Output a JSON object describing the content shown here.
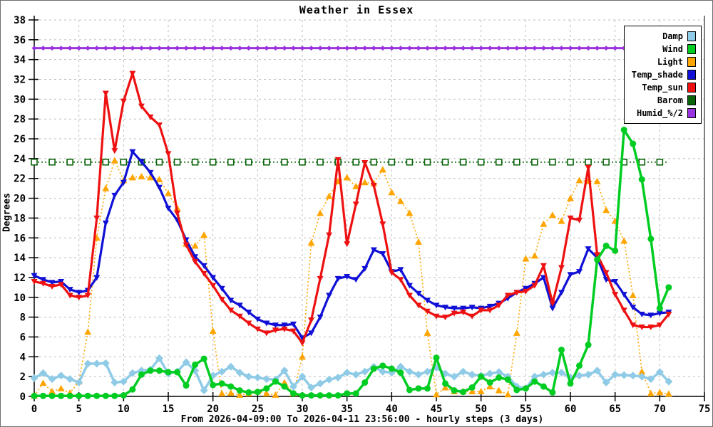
{
  "figure": {
    "title": "Weather in Essex",
    "y_axis_label": "Degrees",
    "x_axis_caption": "From 2026-04-09:00 To 2026-04-11 23:56:00 - hourly steps (3 days)"
  },
  "chart_data": {
    "type": "line",
    "title": "Weather in Essex",
    "ylabel": "Degrees",
    "xlabel": "From 2026-04-09:00 To 2026-04-11 23:56:00 - hourly steps (3 days)",
    "xlim": [
      0,
      75
    ],
    "ylim": [
      0,
      38
    ],
    "x_tick_step": 5,
    "y_tick_step": 2,
    "grid": true,
    "legend_position": "top-right",
    "x_unit": "hour",
    "x_start": 0,
    "x_step": 1,
    "series": [
      {
        "name": "Humid_%/2",
        "color": "#9933e0",
        "style": "solid",
        "width": 3,
        "marker": "diamond-small",
        "marker_every": 1,
        "constant": 35.15,
        "points": 72
      },
      {
        "name": "Barom",
        "color": "#0a640a",
        "style": "dotted",
        "width": 1.6,
        "marker": "square-open",
        "marker_every": 2,
        "constant": 23.65,
        "points": 72
      },
      {
        "name": "Light",
        "color": "#ffa500",
        "style": "dotted",
        "width": 1.6,
        "marker": "triangle-up",
        "marker_every": 1,
        "values": [
          0.05,
          1.35,
          0.5,
          0.8,
          0.35,
          1.5,
          6.5,
          16.0,
          21.0,
          23.8,
          21.8,
          22.1,
          22.2,
          22.1,
          21.9,
          20.5,
          19.0,
          15.4,
          15.2,
          16.3,
          6.6,
          0.3,
          0.35,
          0.15,
          0.3,
          0.5,
          0.3,
          0.15,
          1.4,
          0.3,
          4.0,
          15.5,
          18.5,
          20.2,
          21.7,
          22.1,
          21.2,
          21.6,
          21.5,
          22.9,
          20.6,
          19.7,
          18.5,
          15.6,
          6.4,
          0.2,
          0.9,
          0.5,
          0.5,
          0.5,
          0.5,
          1.0,
          0.6,
          0.2,
          6.4,
          13.9,
          14.2,
          17.4,
          18.3,
          17.7,
          20.0,
          21.8,
          21.7,
          21.7,
          18.8,
          17.7,
          15.7,
          10.2,
          2.5,
          0.3,
          0.4,
          0.25
        ]
      },
      {
        "name": "Damp",
        "color": "#8fcbe6",
        "style": "solid",
        "width": 3.5,
        "marker": "diamond",
        "marker_every": 1,
        "values": [
          1.85,
          2.35,
          1.75,
          2.1,
          1.75,
          1.4,
          3.3,
          3.3,
          3.35,
          1.4,
          1.5,
          2.35,
          2.6,
          2.7,
          3.85,
          2.3,
          2.5,
          3.45,
          2.6,
          0.6,
          2.1,
          2.5,
          3.0,
          2.4,
          2.0,
          1.9,
          1.75,
          1.7,
          2.6,
          1.0,
          2.0,
          0.9,
          1.3,
          1.7,
          1.9,
          2.4,
          2.2,
          2.5,
          3.0,
          2.5,
          2.4,
          3.0,
          2.5,
          2.2,
          2.5,
          2.9,
          2.3,
          2.0,
          2.5,
          2.2,
          2.1,
          2.3,
          2.45,
          2.0,
          1.0,
          0.8,
          2.0,
          2.2,
          2.4,
          2.4,
          1.9,
          2.1,
          2.2,
          2.6,
          1.4,
          2.2,
          2.15,
          2.1,
          2.0,
          1.75,
          2.45,
          1.5
        ]
      },
      {
        "name": "Temp_shade",
        "color": "#1010d6",
        "style": "solid",
        "width": 3.2,
        "marker": "triangle-down",
        "marker_every": 1,
        "values": [
          12.2,
          11.8,
          11.5,
          11.6,
          10.8,
          10.5,
          10.7,
          12.0,
          17.5,
          20.3,
          21.6,
          24.7,
          23.7,
          22.6,
          21.1,
          19.0,
          17.8,
          15.8,
          14.1,
          13.2,
          12.0,
          10.9,
          9.7,
          9.2,
          8.5,
          7.8,
          7.4,
          7.2,
          7.2,
          7.3,
          5.9,
          6.4,
          8.0,
          10.2,
          11.9,
          12.1,
          11.8,
          12.9,
          14.8,
          14.4,
          12.6,
          12.8,
          11.2,
          10.4,
          9.7,
          9.2,
          9.0,
          8.9,
          8.9,
          9.0,
          8.9,
          9.1,
          9.4,
          9.9,
          10.5,
          10.9,
          11.4,
          12.0,
          8.9,
          10.5,
          12.3,
          12.6,
          14.9,
          14.0,
          11.8,
          11.6,
          10.3,
          9.0,
          8.3,
          8.2,
          8.4,
          8.5
        ]
      },
      {
        "name": "Temp_sun",
        "color": "#ee1111",
        "style": "solid",
        "width": 3.2,
        "marker": "triangle-down",
        "marker_every": 1,
        "values": [
          11.6,
          11.4,
          11.1,
          11.3,
          10.2,
          10.0,
          10.2,
          18.0,
          30.6,
          24.8,
          29.8,
          32.6,
          29.3,
          28.2,
          27.4,
          24.5,
          18.5,
          15.3,
          13.6,
          12.4,
          11.2,
          9.8,
          8.7,
          8.1,
          7.4,
          6.8,
          6.4,
          6.7,
          6.8,
          6.6,
          5.4,
          7.7,
          11.9,
          16.3,
          23.9,
          15.4,
          19.4,
          23.6,
          21.3,
          17.4,
          12.5,
          11.8,
          10.2,
          9.2,
          8.6,
          8.1,
          8.0,
          8.4,
          8.5,
          8.1,
          8.7,
          8.7,
          9.2,
          10.2,
          10.5,
          10.6,
          11.2,
          13.2,
          9.4,
          13.0,
          18.0,
          17.8,
          23.1,
          14.3,
          12.5,
          10.3,
          8.7,
          7.2,
          7.0,
          7.0,
          7.2,
          8.3
        ]
      },
      {
        "name": "Wind",
        "color": "#00cc22",
        "style": "solid",
        "width": 3.5,
        "marker": "circle",
        "marker_every": 1,
        "values": [
          0.05,
          0.05,
          0.05,
          0.05,
          0.05,
          0.05,
          0.05,
          0.05,
          0.05,
          0.05,
          0.1,
          0.7,
          2.2,
          2.6,
          2.6,
          2.45,
          2.45,
          1.1,
          3.2,
          3.8,
          1.15,
          1.3,
          1.0,
          0.6,
          0.4,
          0.45,
          0.8,
          1.5,
          1.0,
          0.3,
          0.1,
          0.1,
          0.1,
          0.1,
          0.1,
          0.3,
          0.3,
          1.4,
          2.8,
          3.1,
          2.8,
          2.4,
          0.65,
          0.8,
          0.8,
          3.9,
          1.3,
          0.6,
          0.45,
          0.9,
          2.0,
          1.4,
          1.9,
          1.7,
          0.65,
          0.8,
          1.5,
          1.0,
          0.4,
          4.7,
          1.3,
          3.1,
          5.2,
          13.8,
          15.2,
          14.7,
          26.9,
          25.5,
          21.9,
          15.9,
          8.9,
          11.0
        ]
      }
    ],
    "legend_order": [
      "Damp",
      "Wind",
      "Light",
      "Temp_shade",
      "Temp_sun",
      "Barom",
      "Humid_%/2"
    ]
  },
  "style_colors": {
    "grid": "#bdbdbd",
    "axis": "#000000",
    "background": "#ffffff"
  }
}
